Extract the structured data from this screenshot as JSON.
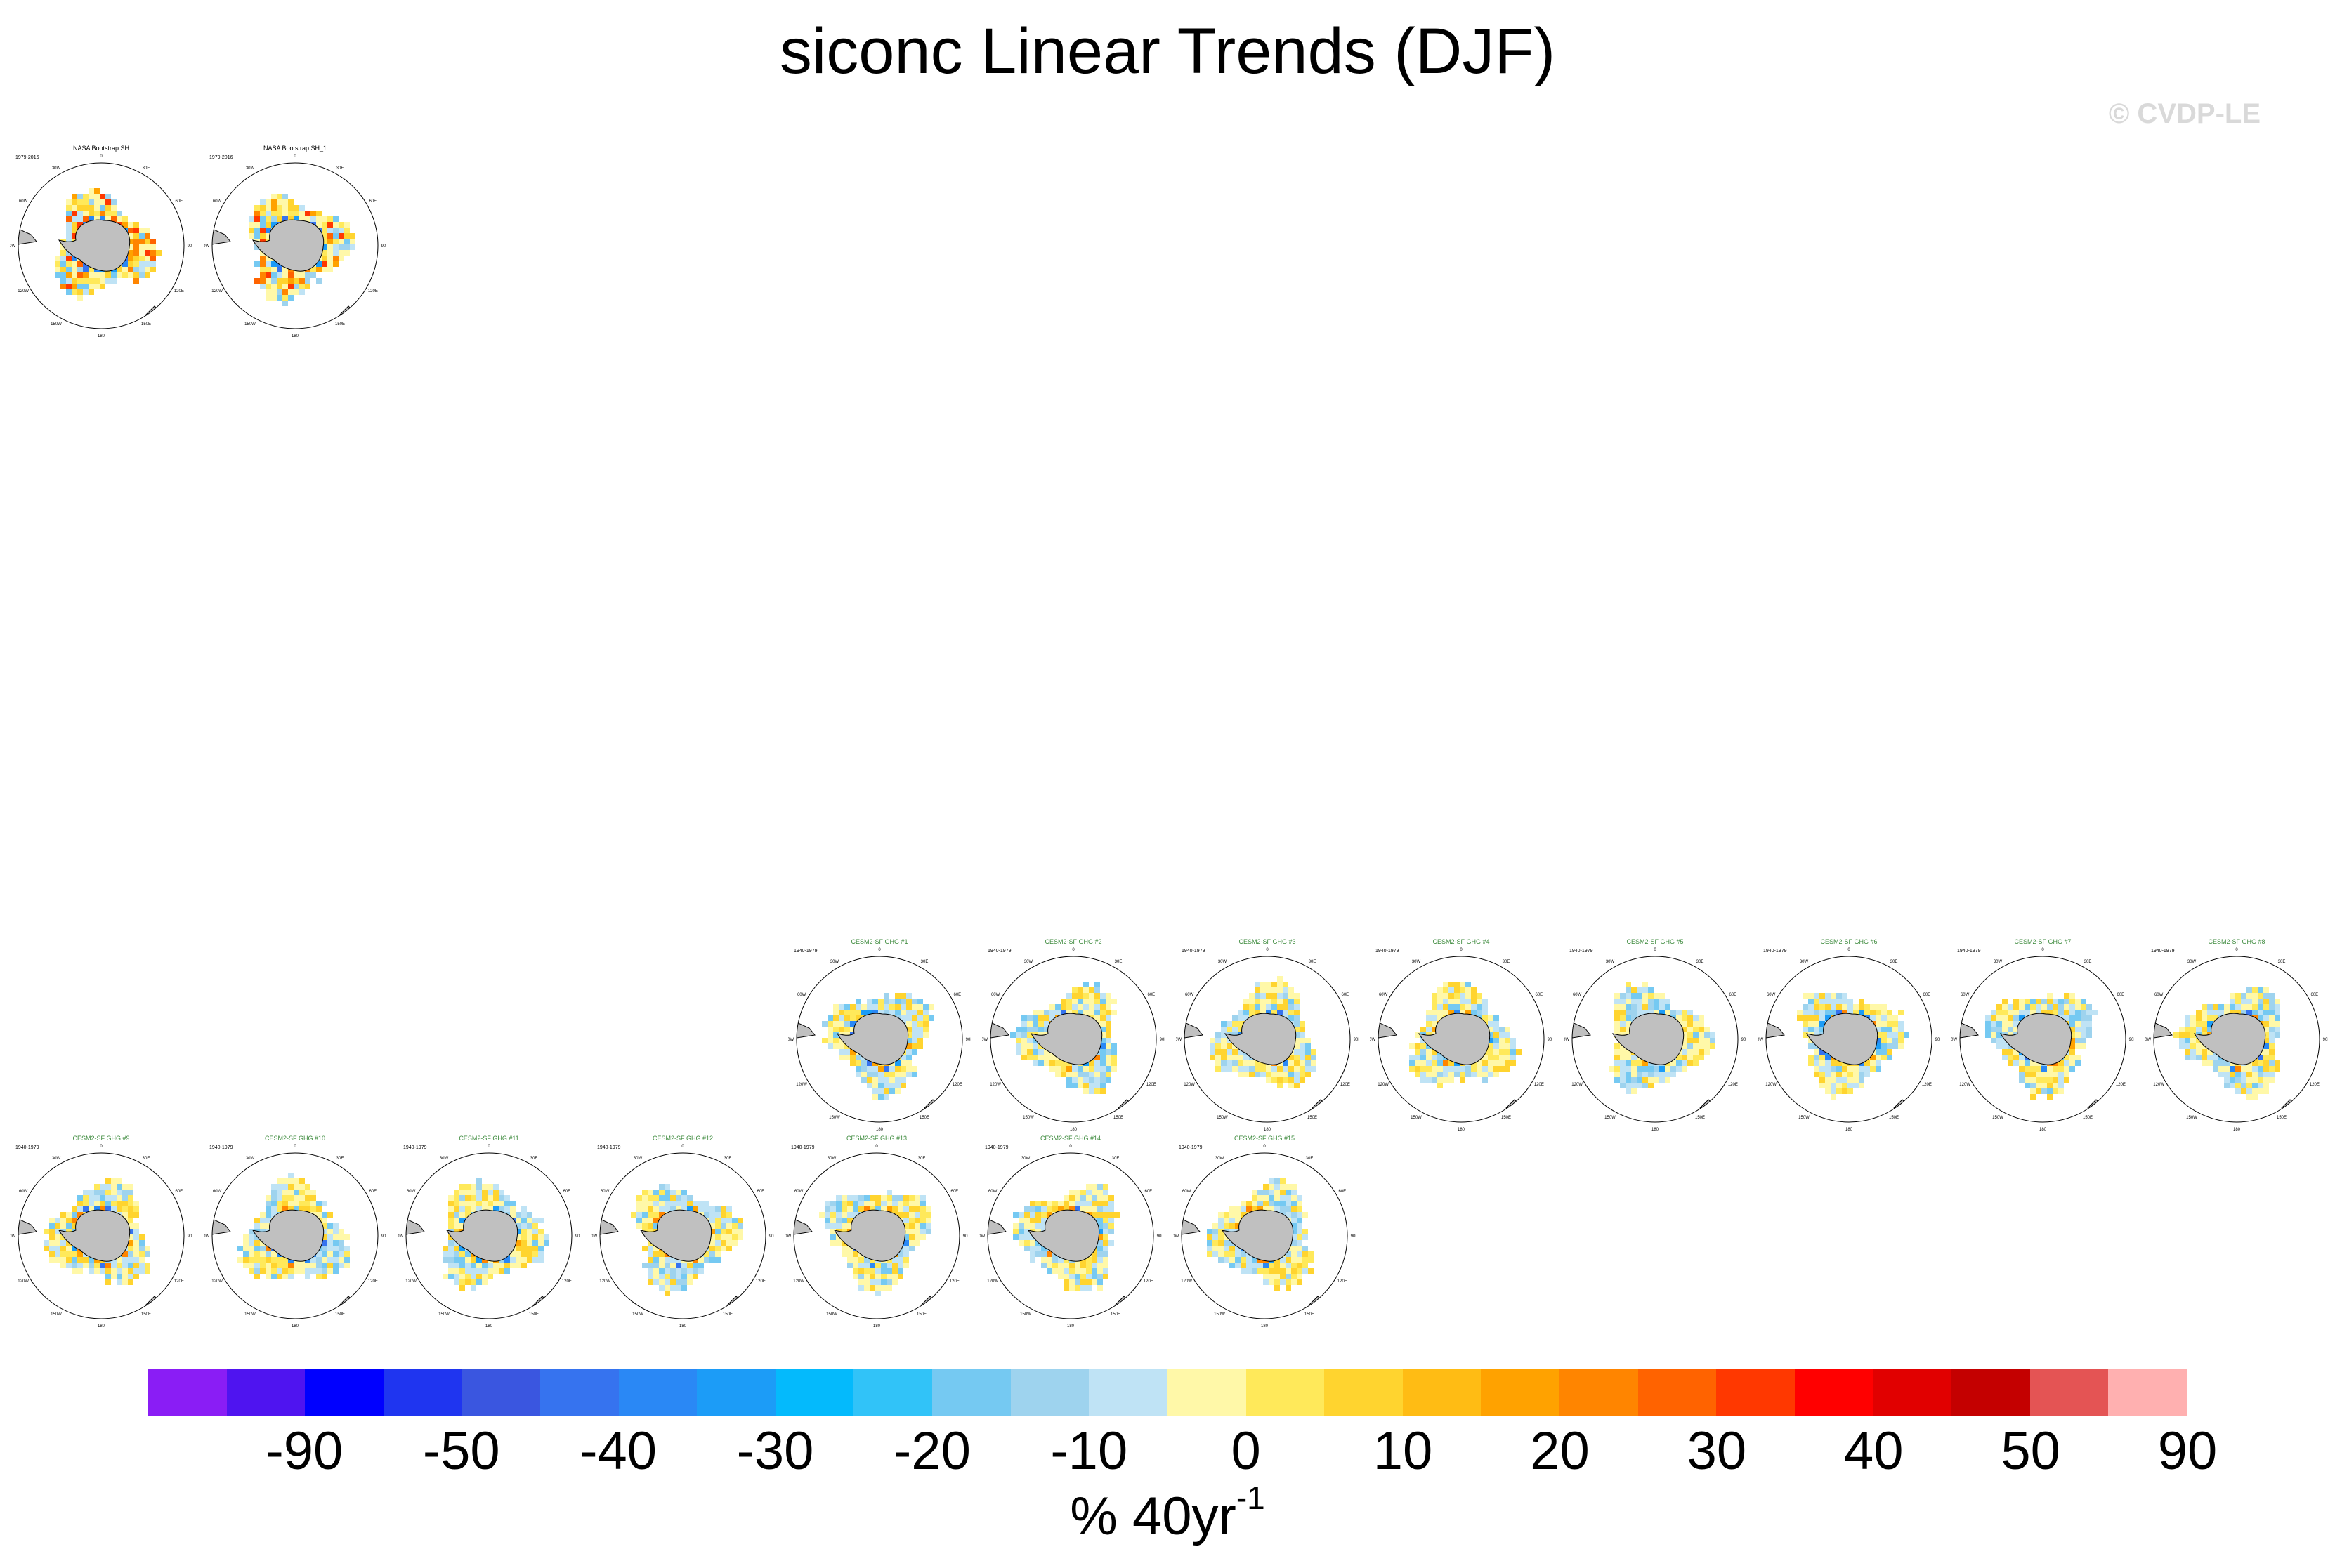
{
  "title": "siconc Linear Trends (DJF)",
  "copyright": "© CVDP-LE",
  "observations": [
    {
      "name": "NASA Bootstrap SH",
      "period": "1979-2016"
    },
    {
      "name": "NASA Bootstrap SH_1",
      "period": "1979-2016"
    }
  ],
  "ensemble": {
    "period": "1940-1979",
    "members": [
      "CESM2-SF GHG #1",
      "CESM2-SF GHG #2",
      "CESM2-SF GHG #3",
      "CESM2-SF GHG #4",
      "CESM2-SF GHG #5",
      "CESM2-SF GHG #6",
      "CESM2-SF GHG #7",
      "CESM2-SF GHG #8",
      "CESM2-SF GHG #9",
      "CESM2-SF GHG #10",
      "CESM2-SF GHG #11",
      "CESM2-SF GHG #12",
      "CESM2-SF GHG #13",
      "CESM2-SF GHG #14",
      "CESM2-SF GHG #15"
    ]
  },
  "map_labels": {
    "lon_top": "0",
    "lon_bottom": "180",
    "lon_30w": "30W",
    "lon_30e": "30E",
    "lon_60w": "60W",
    "lon_60e": "60E",
    "lon_90w": "90W",
    "lon_90e": "90E",
    "lon_120w": "120W",
    "lon_120e": "120E",
    "lon_150w": "150W",
    "lon_150e": "150E"
  },
  "colorbar": {
    "label": "% 40yr",
    "label_superscript": "-1",
    "ticks": [
      "-90",
      "-50",
      "-40",
      "-30",
      "-20",
      "-10",
      "0",
      "10",
      "20",
      "30",
      "40",
      "50",
      "90"
    ],
    "colors": [
      "#8a1df5",
      "#4f14f0",
      "#0000ff",
      "#1f35f0",
      "#3a56e0",
      "#3673ef",
      "#2a88f5",
      "#1c9cf7",
      "#04bafc",
      "#31c3f8",
      "#75c9f2",
      "#9ed3ee",
      "#bfe3f5",
      "#fff8a8",
      "#ffe95a",
      "#ffd42f",
      "#ffbc14",
      "#ffa200",
      "#ff8500",
      "#ff6300",
      "#ff3800",
      "#ff0000",
      "#e10000",
      "#c40000",
      "#e45454",
      "#ffb0b0"
    ]
  },
  "land_color": "#c0c0c0"
}
